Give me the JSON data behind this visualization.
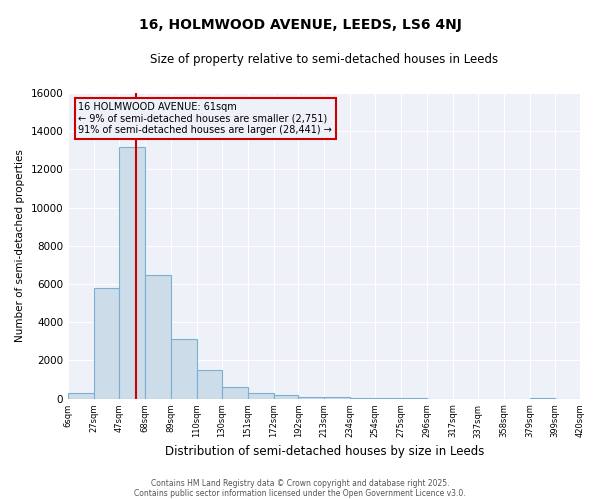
{
  "title": "16, HOLMWOOD AVENUE, LEEDS, LS6 4NJ",
  "subtitle": "Size of property relative to semi-detached houses in Leeds",
  "xlabel": "Distribution of semi-detached houses by size in Leeds",
  "ylabel": "Number of semi-detached properties",
  "bin_edges": [
    6,
    27,
    47,
    68,
    89,
    110,
    130,
    151,
    172,
    192,
    213,
    234,
    254,
    275,
    296,
    317,
    337,
    358,
    379,
    399,
    420
  ],
  "bin_counts": [
    300,
    5800,
    13200,
    6500,
    3100,
    1500,
    600,
    300,
    200,
    100,
    100,
    50,
    50,
    30,
    0,
    0,
    0,
    0,
    50,
    0
  ],
  "property_size": 61,
  "annotation_title": "16 HOLMWOOD AVENUE: 61sqm",
  "annotation_line1": "← 9% of semi-detached houses are smaller (2,751)",
  "annotation_line2": "91% of semi-detached houses are larger (28,441) →",
  "bar_color": "#ccdce8",
  "bar_edge_color": "#7bafd4",
  "red_line_color": "#cc0000",
  "annotation_box_edge_color": "#cc0000",
  "background_color": "#ffffff",
  "plot_bg_color": "#eef2f8",
  "ylim": [
    0,
    16000
  ],
  "yticks": [
    0,
    2000,
    4000,
    6000,
    8000,
    10000,
    12000,
    14000,
    16000
  ],
  "footnote1": "Contains HM Land Registry data © Crown copyright and database right 2025.",
  "footnote2": "Contains public sector information licensed under the Open Government Licence v3.0."
}
